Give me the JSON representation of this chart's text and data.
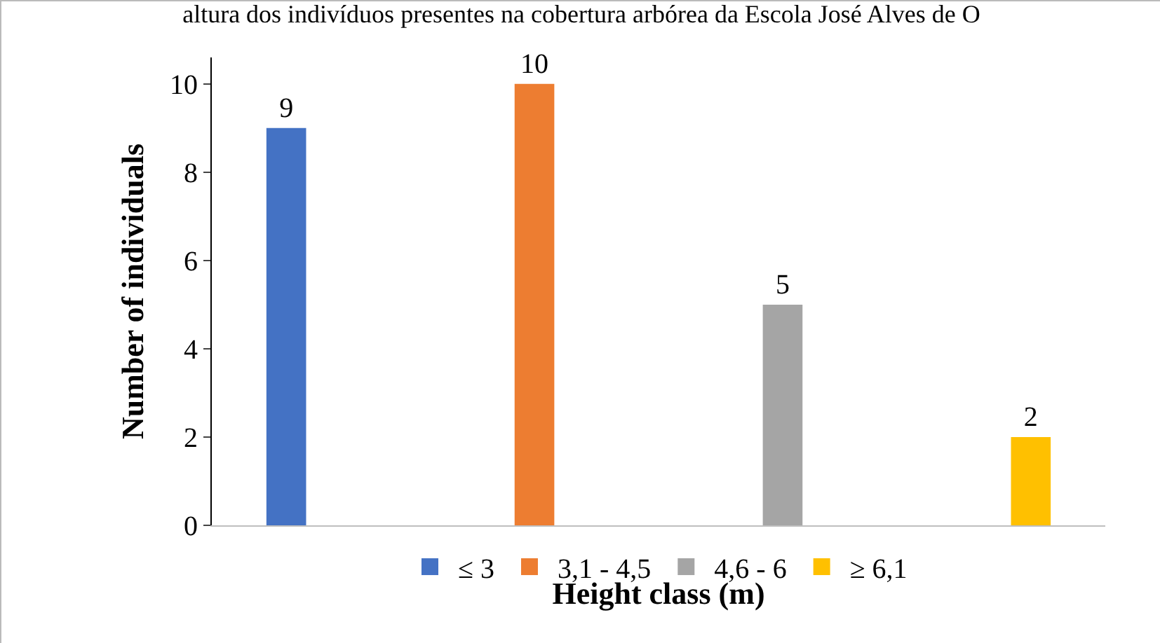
{
  "chart_data": {
    "type": "bar",
    "title": "altura dos indivíduos presentes na cobertura arbórea da Escola José Alves de O",
    "xlabel": "Height class (m)",
    "ylabel": "Number of individuals",
    "categories": [
      null,
      null,
      null,
      null
    ],
    "series": [
      {
        "name": "≤ 3",
        "color": "#4472c4",
        "values": [
          9,
          null,
          null,
          null
        ]
      },
      {
        "name": "3,1 - 4,5",
        "color": "#ed7d31",
        "values": [
          null,
          10,
          null,
          null
        ]
      },
      {
        "name": "4,6 - 6",
        "color": "#a5a5a5",
        "values": [
          null,
          null,
          5,
          null
        ]
      },
      {
        "name": "≥ 6,1",
        "color": "#ffc000",
        "values": [
          null,
          null,
          null,
          2
        ]
      }
    ],
    "ylim": [
      0,
      10.6
    ],
    "yticks": [
      0,
      2,
      4,
      6,
      8,
      10
    ],
    "grid": false,
    "legend": "bottom",
    "data_labels": true
  }
}
